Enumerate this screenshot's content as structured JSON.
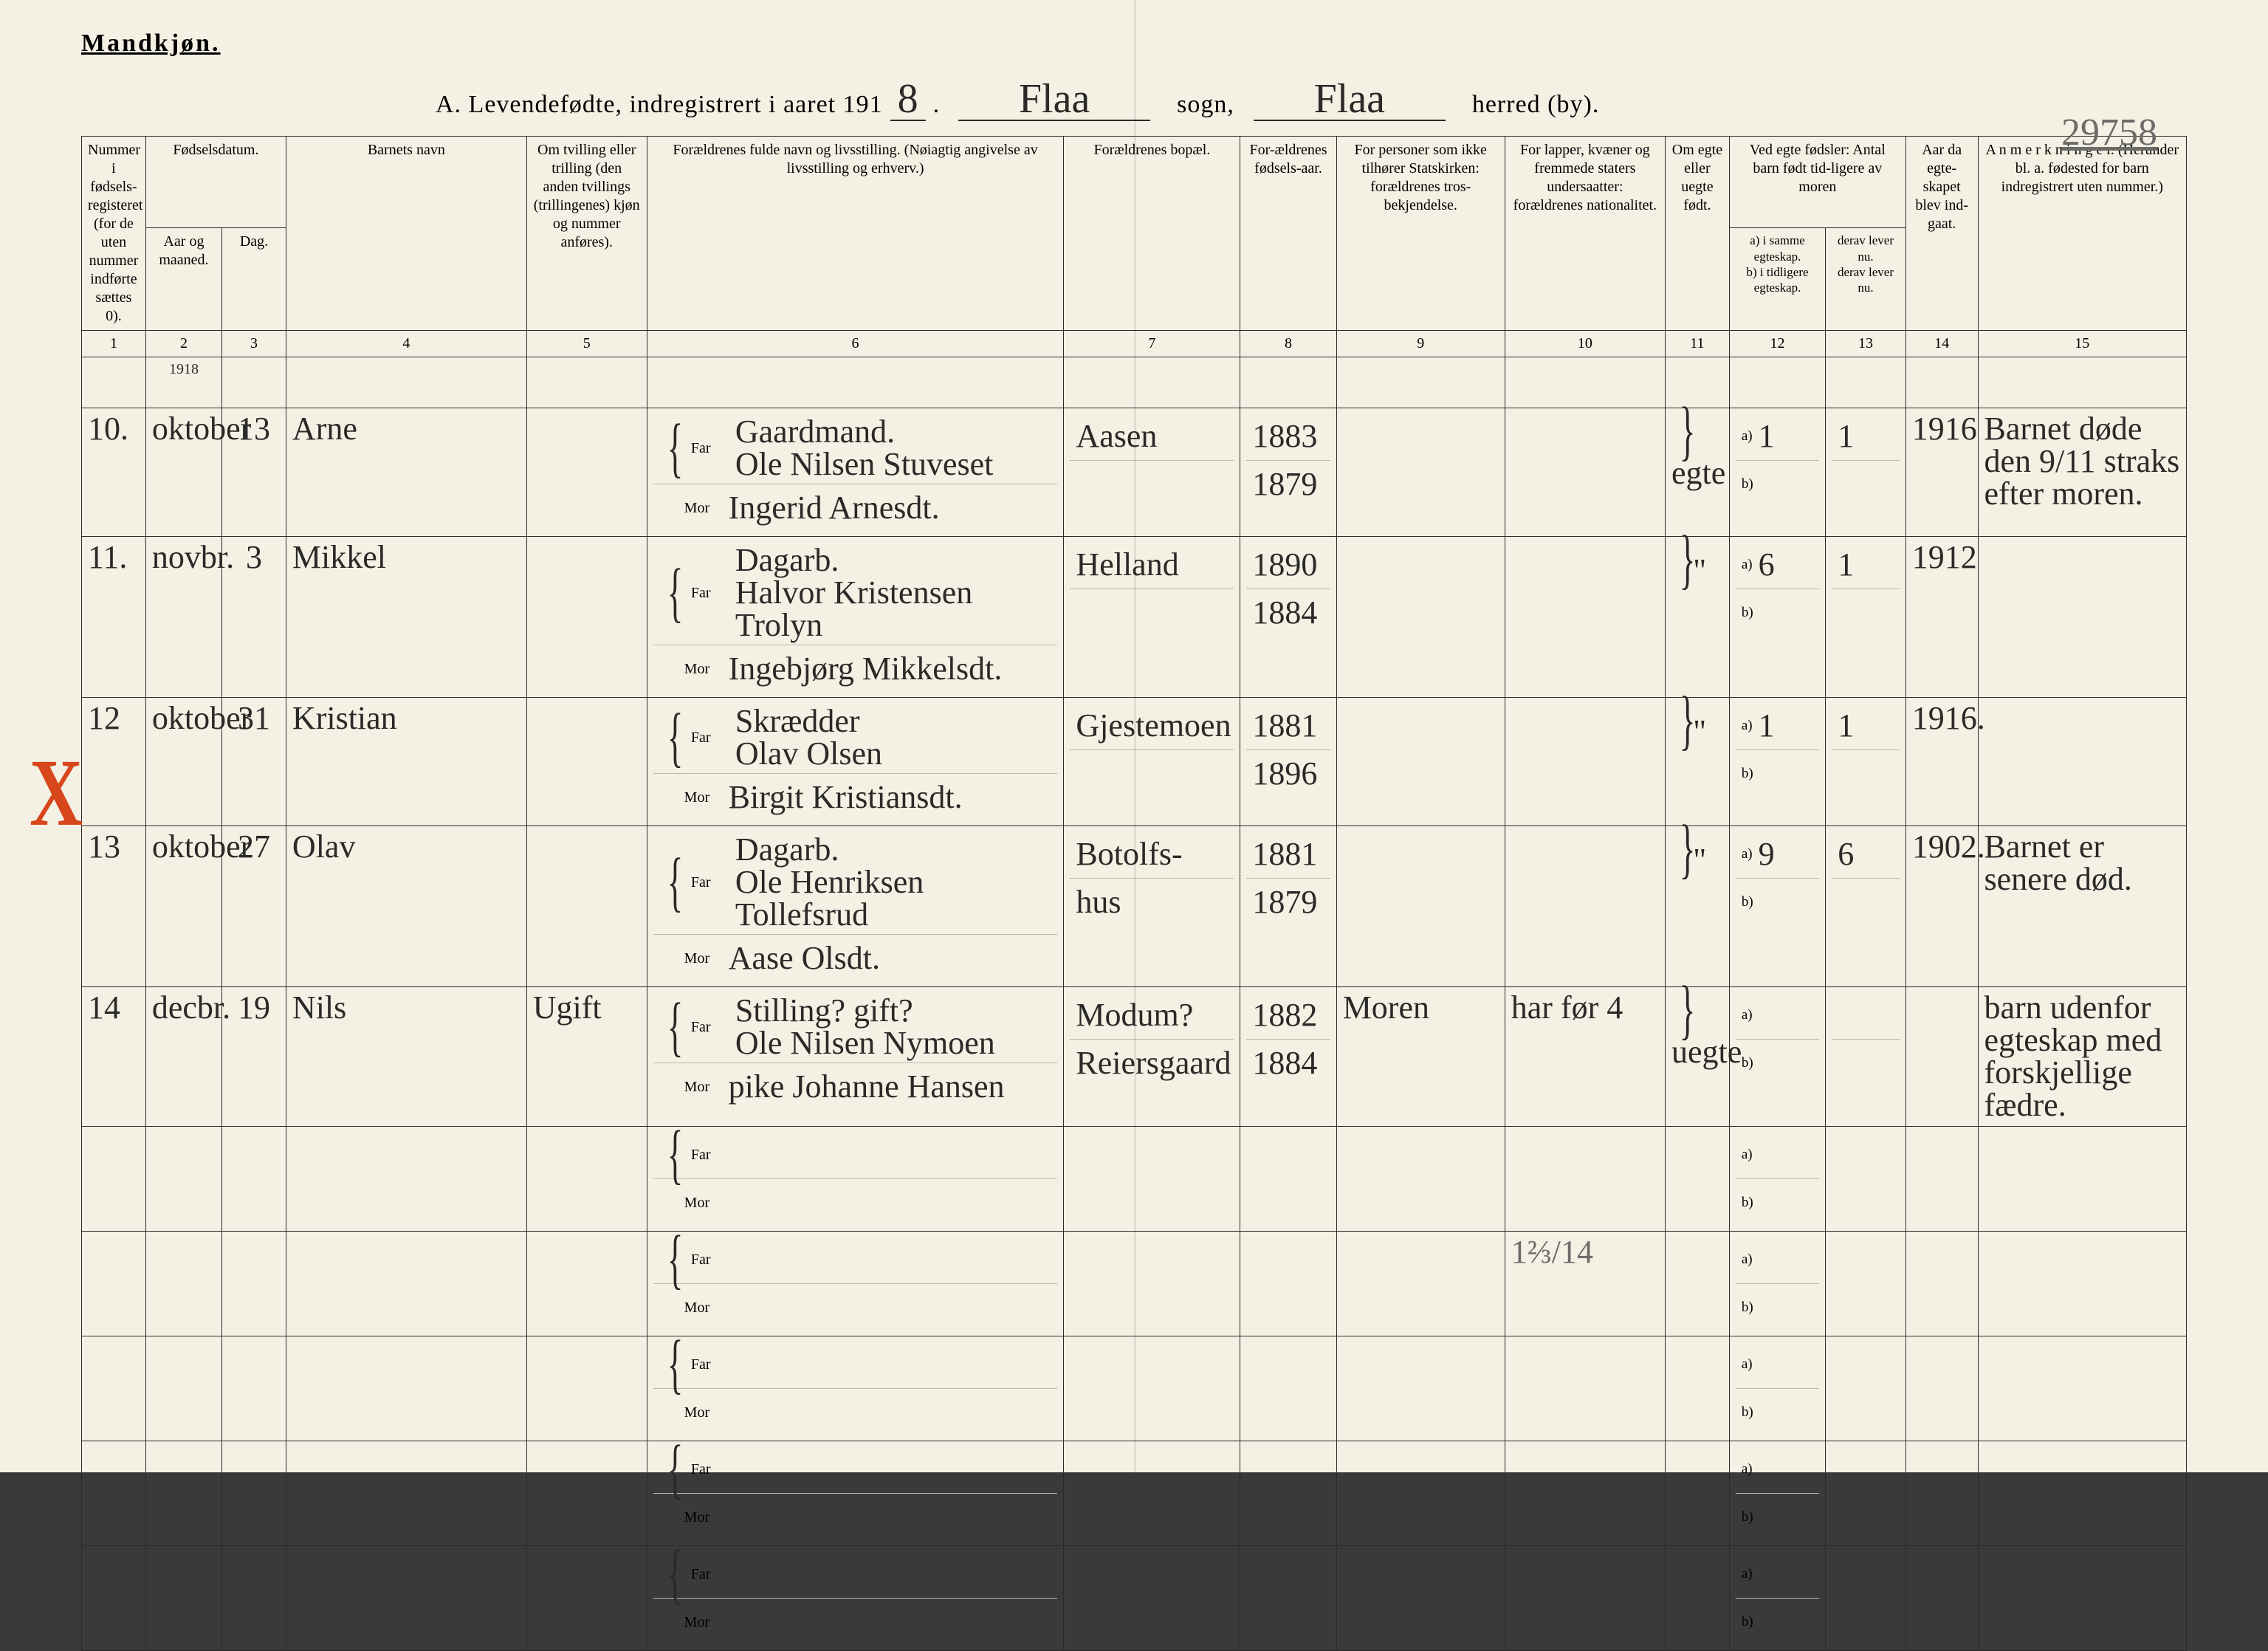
{
  "gender_heading": "Mandkjøn.",
  "title_prefix": "A. Levendefødte, indregistrert i aaret 191",
  "year_suffix": "8",
  "sogn_name": "Flaa",
  "sogn_label": "sogn,",
  "herred_name": "Flaa",
  "herred_label": "herred (by).",
  "page_number": "29758",
  "columns": {
    "c1": "Nummer i fødsels-registeret (for de uten nummer indførte sættes 0).",
    "c2a": "Fødselsdatum.",
    "c2": "Aar og maaned.",
    "c3": "Dag.",
    "c4": "Barnets navn",
    "c5": "Om tvilling eller trilling (den anden tvillings (trillingenes) kjøn og nummer anføres).",
    "c6": "Forældrenes fulde navn og livsstilling. (Nøiagtig angivelse av livsstilling og erhverv.)",
    "c7": "Forældrenes bopæl.",
    "c8": "For-ældrenes fødsels-aar.",
    "c9": "For personer som ikke tilhører Statskirken: forældrenes tros-bekjendelse.",
    "c10": "For lapper, kvæner og fremmede staters undersaatter: forældrenes nationalitet.",
    "c11": "Om egte eller uegte født.",
    "c12top": "Ved egte fødsler: Antal barn født tid-ligere av moren",
    "c12a": "a) i samme egteskap.",
    "c12b": "b) i tidligere egteskap.",
    "c13a": "derav lever nu.",
    "c13b": "derav lever nu.",
    "c14": "Aar da egte-skapet blev ind-gaat.",
    "c15": "A n m e r k n i n g e r. (Herunder bl. a. fødested for barn indregistrert uten nummer.)"
  },
  "colnums": [
    "1",
    "2",
    "3",
    "4",
    "5",
    "6",
    "7",
    "8",
    "9",
    "10",
    "11",
    "12",
    "13",
    "14",
    "15"
  ],
  "labels": {
    "far": "Far",
    "mor": "Mor",
    "a": "a)",
    "b": "b)"
  },
  "year_header_row": "1918",
  "rows": [
    {
      "n": "10.",
      "month": "oktober",
      "day": "13",
      "child": "Arne",
      "twin": "",
      "far_occ": "Gaardmand.",
      "far": "Ole Nilsen Stuveset",
      "mor": "Ingerid Arnesdt.",
      "bopel_far": "Aasen",
      "bopel_mor": "",
      "faryear": "1883",
      "moryear": "1879",
      "rel": "",
      "nat": "",
      "egte": "egte",
      "a": "1",
      "b": "",
      "derav_a": "1",
      "derav_b": "",
      "aar": "1916",
      "note": "Barnet døde den 9/11 straks efter moren."
    },
    {
      "n": "11.",
      "month": "novbr.",
      "day": "3",
      "child": "Mikkel",
      "twin": "",
      "far_occ": "Dagarb.",
      "far": "Halvor Kristensen Trolyn",
      "mor": "Ingebjørg Mikkelsdt.",
      "bopel_far": "Helland",
      "bopel_mor": "",
      "faryear": "1890",
      "moryear": "1884",
      "rel": "",
      "nat": "",
      "egte": "\"",
      "a": "6",
      "b": "",
      "derav_a": "1",
      "derav_b": "",
      "aar": "1912",
      "note": ""
    },
    {
      "n": "12",
      "month": "oktober",
      "day": "31",
      "child": "Kristian",
      "twin": "",
      "far_occ": "Skrædder",
      "far": "Olav Olsen",
      "mor": "Birgit Kristiansdt.",
      "bopel_far": "Gjestemoen",
      "bopel_mor": "",
      "faryear": "1881",
      "moryear": "1896",
      "rel": "",
      "nat": "",
      "egte": "\"",
      "a": "1",
      "b": "",
      "derav_a": "1",
      "derav_b": "",
      "aar": "1916.",
      "note": ""
    },
    {
      "n": "13",
      "month": "oktober",
      "day": "27",
      "child": "Olav",
      "twin": "",
      "far_occ": "Dagarb.",
      "far": "Ole Henriksen Tollefsrud",
      "mor": "Aase Olsdt.",
      "bopel_far": "Botolfs-",
      "bopel_mor": "hus",
      "faryear": "1881",
      "moryear": "1879",
      "rel": "",
      "nat": "",
      "egte": "\"",
      "a": "9",
      "b": "",
      "derav_a": "6",
      "derav_b": "",
      "aar": "1902.",
      "note": "Barnet er senere død."
    },
    {
      "n": "14",
      "month": "decbr.",
      "day": "19",
      "child": "Nils",
      "twin": "Ugift",
      "far_occ": "Stilling? gift?",
      "far": "Ole Nilsen Nymoen",
      "mor": "pike Johanne Hansen",
      "bopel_far": "Modum?",
      "bopel_mor": "Reiersgaard",
      "faryear": "1882",
      "moryear": "1884",
      "rel": "Moren",
      "nat": "har før 4",
      "egte": "uegte",
      "a": "",
      "b": "",
      "derav_a": "",
      "derav_b": "",
      "aar": "",
      "note": "barn udenfor egteskap med forskjellige fædre."
    }
  ],
  "extra_note_mark": "1⅔/14",
  "colors": {
    "paper": "#f4f0e4",
    "ink": "#2a2a28",
    "red": "#d8461b",
    "rule": "#bbb8ac"
  }
}
